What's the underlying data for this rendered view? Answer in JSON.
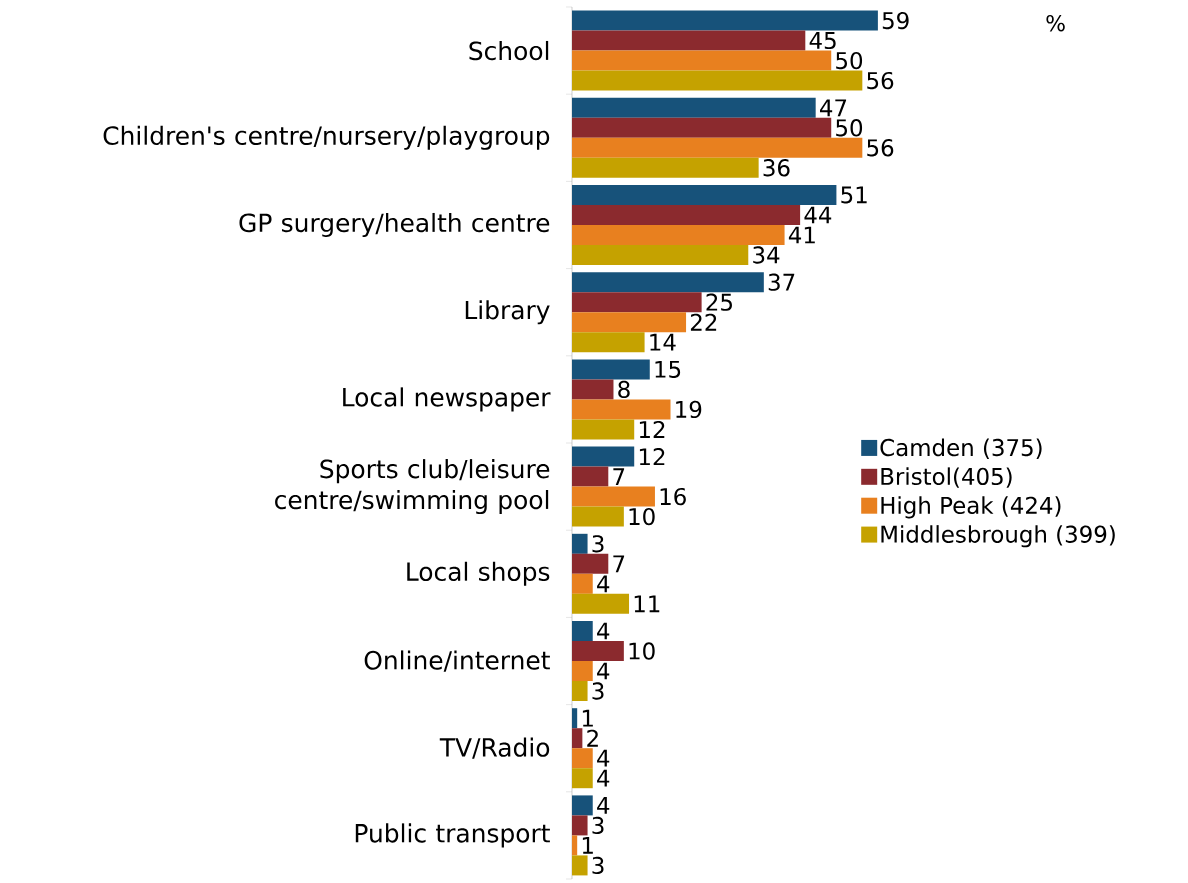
{
  "chart_data": {
    "type": "bar",
    "orientation": "horizontal",
    "data_labels": true,
    "legend": "right",
    "annotations": [
      "%"
    ],
    "categories": [
      "School",
      "Children's centre/nursery/playgroup",
      "GP surgery/health centre",
      "Library",
      "Local newspaper",
      "Sports club/leisure centre/swimming pool",
      "Local shops",
      "Online/internet",
      "TV/Radio",
      "Public transport"
    ],
    "series": [
      {
        "name": "Camden (375)",
        "color": "#17527a",
        "values": [
          59,
          47,
          51,
          37,
          15,
          12,
          3,
          4,
          1,
          4
        ]
      },
      {
        "name": "Bristol(405)",
        "color": "#8b2a2e",
        "values": [
          45,
          50,
          44,
          25,
          8,
          7,
          7,
          10,
          2,
          3
        ]
      },
      {
        "name": "High Peak (424)",
        "color": "#e8801f",
        "values": [
          50,
          56,
          41,
          22,
          19,
          16,
          4,
          4,
          4,
          1
        ]
      },
      {
        "name": "Middlesbrough (399)",
        "color": "#c5a200",
        "values": [
          56,
          36,
          34,
          14,
          12,
          10,
          11,
          3,
          4,
          3
        ]
      }
    ]
  }
}
